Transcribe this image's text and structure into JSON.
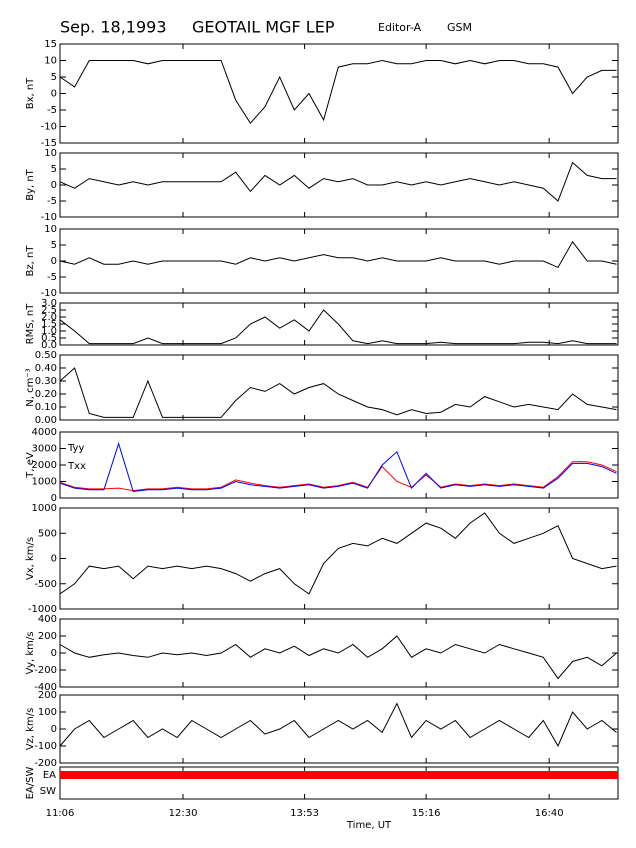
{
  "header": {
    "date": "Sep. 18,1993",
    "mission": "GEOTAIL MGF LEP",
    "editor": "Editor-A",
    "frame": "GSM"
  },
  "chart_data": [
    {
      "type": "line",
      "ylabel": "Bx, nT",
      "color": "#000000",
      "xlim": [
        666,
        1047
      ],
      "ylim": [
        -15,
        15
      ],
      "yticks": [
        -15,
        -10,
        -5,
        0,
        5,
        10,
        15
      ],
      "x": [
        666,
        676,
        686,
        696,
        706,
        716,
        726,
        736,
        746,
        756,
        766,
        776,
        786,
        796,
        806,
        816,
        826,
        836,
        846,
        856,
        866,
        876,
        886,
        896,
        906,
        916,
        926,
        936,
        946,
        956,
        966,
        976,
        986,
        996,
        1006,
        1016,
        1026,
        1036,
        1046
      ],
      "values": [
        5,
        2,
        10,
        10,
        10,
        10,
        9,
        10,
        10,
        10,
        10,
        10,
        -2,
        -9,
        -4,
        5,
        -5,
        0,
        -8,
        8,
        9,
        9,
        10,
        9,
        9,
        10,
        10,
        9,
        10,
        9,
        10,
        10,
        9,
        9,
        8,
        0,
        5,
        7,
        7
      ]
    },
    {
      "type": "line",
      "ylabel": "By, nT",
      "color": "#000000",
      "xlim": [
        666,
        1047
      ],
      "ylim": [
        -10,
        10
      ],
      "yticks": [
        -10,
        -5,
        0,
        5,
        10
      ],
      "x": [
        666,
        676,
        686,
        696,
        706,
        716,
        726,
        736,
        746,
        756,
        766,
        776,
        786,
        796,
        806,
        816,
        826,
        836,
        846,
        856,
        866,
        876,
        886,
        896,
        906,
        916,
        926,
        936,
        946,
        956,
        966,
        976,
        986,
        996,
        1006,
        1016,
        1026,
        1036,
        1046
      ],
      "values": [
        1,
        -1,
        2,
        1,
        0,
        1,
        0,
        1,
        1,
        1,
        1,
        1,
        4,
        -2,
        3,
        0,
        3,
        -1,
        2,
        1,
        2,
        0,
        0,
        1,
        0,
        1,
        0,
        1,
        2,
        1,
        0,
        1,
        0,
        -1,
        -5,
        7,
        3,
        2,
        2
      ]
    },
    {
      "type": "line",
      "ylabel": "Bz, nT",
      "color": "#000000",
      "xlim": [
        666,
        1047
      ],
      "ylim": [
        -10,
        10
      ],
      "yticks": [
        -10,
        -5,
        0,
        5,
        10
      ],
      "x": [
        666,
        676,
        686,
        696,
        706,
        716,
        726,
        736,
        746,
        756,
        766,
        776,
        786,
        796,
        806,
        816,
        826,
        836,
        846,
        856,
        866,
        876,
        886,
        896,
        906,
        916,
        926,
        936,
        946,
        956,
        966,
        976,
        986,
        996,
        1006,
        1016,
        1026,
        1036,
        1046
      ],
      "values": [
        0,
        -1,
        1,
        -1,
        -1,
        0,
        -1,
        0,
        0,
        0,
        0,
        0,
        -1,
        1,
        0,
        1,
        0,
        1,
        2,
        1,
        1,
        0,
        1,
        0,
        0,
        0,
        1,
        0,
        0,
        0,
        -1,
        0,
        0,
        0,
        -2,
        6,
        0,
        0,
        -1
      ]
    },
    {
      "type": "line",
      "ylabel": "RMS, nT",
      "color": "#000000",
      "xlim": [
        666,
        1047
      ],
      "ylim": [
        0,
        3
      ],
      "yticks": [
        {
          "value": 0,
          "label": "0.0"
        },
        {
          "value": 0.5,
          "label": "0.5"
        },
        {
          "value": 1,
          "label": "1.0"
        },
        {
          "value": 1.5,
          "label": "1.5"
        },
        {
          "value": 2,
          "label": "2.0"
        },
        {
          "value": 2.5,
          "label": "2.5"
        },
        {
          "value": 3,
          "label": "3.0"
        }
      ],
      "x": [
        666,
        676,
        686,
        696,
        706,
        716,
        726,
        736,
        746,
        756,
        766,
        776,
        786,
        796,
        806,
        816,
        826,
        836,
        846,
        856,
        866,
        876,
        886,
        896,
        906,
        916,
        926,
        936,
        946,
        956,
        966,
        976,
        986,
        996,
        1006,
        1016,
        1026,
        1036,
        1046
      ],
      "values": [
        1.8,
        1.0,
        0.1,
        0.1,
        0.1,
        0.1,
        0.5,
        0.1,
        0.1,
        0.1,
        0.1,
        0.1,
        0.5,
        1.5,
        2.0,
        1.2,
        1.8,
        1.0,
        2.5,
        1.5,
        0.3,
        0.1,
        0.3,
        0.1,
        0.1,
        0.1,
        0.2,
        0.1,
        0.1,
        0.1,
        0.1,
        0.1,
        0.2,
        0.2,
        0.1,
        0.3,
        0.1,
        0.1,
        0.1
      ]
    },
    {
      "type": "line",
      "ylabel": "N, cm⁻³",
      "color": "#000000",
      "xlim": [
        666,
        1047
      ],
      "ylim": [
        0,
        0.5
      ],
      "yticks": [
        {
          "value": 0,
          "label": "0.00"
        },
        {
          "value": 0.1,
          "label": "0.10"
        },
        {
          "value": 0.2,
          "label": "0.20"
        },
        {
          "value": 0.3,
          "label": "0.30"
        },
        {
          "value": 0.4,
          "label": "0.40"
        },
        {
          "value": 0.5,
          "label": "0.50"
        }
      ],
      "x": [
        666,
        676,
        686,
        696,
        706,
        716,
        726,
        736,
        746,
        756,
        766,
        776,
        786,
        796,
        806,
        816,
        826,
        836,
        846,
        856,
        866,
        876,
        886,
        896,
        906,
        916,
        926,
        936,
        946,
        956,
        966,
        976,
        986,
        996,
        1006,
        1016,
        1026,
        1036,
        1046
      ],
      "values": [
        0.3,
        0.4,
        0.05,
        0.02,
        0.02,
        0.02,
        0.3,
        0.02,
        0.02,
        0.02,
        0.02,
        0.02,
        0.15,
        0.25,
        0.22,
        0.28,
        0.2,
        0.25,
        0.28,
        0.2,
        0.15,
        0.1,
        0.08,
        0.04,
        0.08,
        0.05,
        0.06,
        0.12,
        0.1,
        0.18,
        0.14,
        0.1,
        0.12,
        0.1,
        0.08,
        0.2,
        0.12,
        0.1,
        0.08
      ]
    },
    {
      "type": "line",
      "ylabel": "T, eV",
      "xlim": [
        666,
        1047
      ],
      "ylim": [
        0,
        4000
      ],
      "yticks": [
        0,
        1000,
        2000,
        3000,
        4000
      ],
      "x": [
        666,
        676,
        686,
        696,
        706,
        716,
        726,
        736,
        746,
        756,
        766,
        776,
        786,
        796,
        806,
        816,
        826,
        836,
        846,
        856,
        866,
        876,
        886,
        896,
        906,
        916,
        926,
        936,
        946,
        956,
        966,
        976,
        986,
        996,
        1006,
        1016,
        1026,
        1036,
        1046
      ],
      "series": [
        {
          "name": "Tyy",
          "color": "#ff0000",
          "values": [
            950,
            650,
            550,
            550,
            600,
            450,
            550,
            550,
            650,
            550,
            550,
            650,
            1100,
            900,
            750,
            650,
            750,
            850,
            650,
            750,
            950,
            650,
            1900,
            1000,
            650,
            1400,
            650,
            850,
            750,
            850,
            750,
            850,
            750,
            650,
            1300,
            2200,
            2200,
            2000,
            1600
          ]
        },
        {
          "name": "Txx",
          "color": "#0000ff",
          "values": [
            900,
            600,
            500,
            500,
            3300,
            400,
            500,
            500,
            600,
            500,
            500,
            600,
            1000,
            800,
            700,
            600,
            700,
            800,
            600,
            700,
            900,
            600,
            2000,
            2800,
            600,
            1500,
            600,
            800,
            700,
            800,
            700,
            800,
            700,
            600,
            1200,
            2100,
            2100,
            1900,
            1500
          ]
        }
      ]
    },
    {
      "type": "line",
      "ylabel": "Vx, km/s",
      "color": "#000000",
      "xlim": [
        666,
        1047
      ],
      "ylim": [
        -1000,
        1000
      ],
      "yticks": [
        -1000,
        -500,
        0,
        500,
        1000
      ],
      "x": [
        666,
        676,
        686,
        696,
        706,
        716,
        726,
        736,
        746,
        756,
        766,
        776,
        786,
        796,
        806,
        816,
        826,
        836,
        846,
        856,
        866,
        876,
        886,
        896,
        906,
        916,
        926,
        936,
        946,
        956,
        966,
        976,
        986,
        996,
        1006,
        1016,
        1026,
        1036,
        1046
      ],
      "values": [
        -700,
        -500,
        -150,
        -200,
        -150,
        -400,
        -150,
        -200,
        -150,
        -200,
        -150,
        -200,
        -300,
        -450,
        -300,
        -200,
        -500,
        -700,
        -100,
        200,
        300,
        250,
        400,
        300,
        500,
        700,
        600,
        400,
        700,
        900,
        500,
        300,
        400,
        500,
        650,
        0,
        -100,
        -200,
        -150
      ]
    },
    {
      "type": "line",
      "ylabel": "Vy, km/s",
      "color": "#000000",
      "xlim": [
        666,
        1047
      ],
      "ylim": [
        -400,
        400
      ],
      "yticks": [
        -400,
        -200,
        0,
        200,
        400
      ],
      "x": [
        666,
        676,
        686,
        696,
        706,
        716,
        726,
        736,
        746,
        756,
        766,
        776,
        786,
        796,
        806,
        816,
        826,
        836,
        846,
        856,
        866,
        876,
        886,
        896,
        906,
        916,
        926,
        936,
        946,
        956,
        966,
        976,
        986,
        996,
        1006,
        1016,
        1026,
        1036,
        1046
      ],
      "values": [
        100,
        0,
        -50,
        -20,
        0,
        -30,
        -50,
        0,
        -20,
        0,
        -30,
        0,
        100,
        -50,
        50,
        0,
        80,
        -30,
        50,
        0,
        100,
        -50,
        50,
        200,
        -50,
        50,
        0,
        100,
        50,
        0,
        100,
        50,
        0,
        -50,
        -300,
        -100,
        -50,
        -150,
        0
      ]
    },
    {
      "type": "line",
      "ylabel": "Vz, km/s",
      "color": "#000000",
      "xlim": [
        666,
        1047
      ],
      "ylim": [
        -200,
        200
      ],
      "yticks": [
        -200,
        -100,
        0,
        100,
        200
      ],
      "x": [
        666,
        676,
        686,
        696,
        706,
        716,
        726,
        736,
        746,
        756,
        766,
        776,
        786,
        796,
        806,
        816,
        826,
        836,
        846,
        856,
        866,
        876,
        886,
        896,
        906,
        916,
        926,
        936,
        946,
        956,
        966,
        976,
        986,
        996,
        1006,
        1016,
        1026,
        1036,
        1046
      ],
      "values": [
        -100,
        0,
        50,
        -50,
        0,
        50,
        -50,
        0,
        -50,
        50,
        0,
        -50,
        0,
        50,
        -30,
        0,
        50,
        -50,
        0,
        50,
        0,
        50,
        -20,
        150,
        -50,
        50,
        0,
        50,
        -50,
        0,
        50,
        0,
        -50,
        50,
        -100,
        100,
        0,
        50,
        -20
      ]
    },
    {
      "type": "state",
      "ylabel": "EA/SW",
      "xlabel": "Time, UT",
      "color": "#ff0000",
      "xlim": [
        666,
        1047
      ],
      "categories": [
        "EA",
        "SW"
      ],
      "xticks": [
        {
          "value": 666,
          "label": "11:06"
        },
        {
          "value": 750,
          "label": "12:30"
        },
        {
          "value": 833,
          "label": "13:53"
        },
        {
          "value": 916,
          "label": "15:16"
        },
        {
          "value": 1000,
          "label": "16:40"
        }
      ],
      "x": [
        666,
        1047
      ],
      "values": [
        "EA",
        "EA"
      ]
    }
  ]
}
